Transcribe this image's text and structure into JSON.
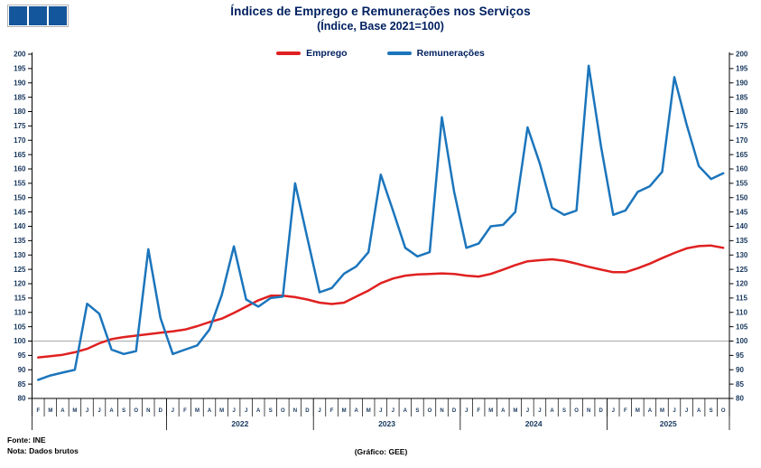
{
  "logo": {
    "description": "three-blue-squares",
    "square_color": "#14569B",
    "square_count": 3
  },
  "footer": {
    "source": "Fonte: INE",
    "note": "Nota: Dados brutos",
    "credit": "(Gráfico: GEE)"
  },
  "chart_data": {
    "type": "line",
    "title": "Índices de Emprego e Remunerações nos Serviços",
    "subtitle": "(Índice, Base 2021=100)",
    "x_start": "2021-02",
    "x_end": "2025-10",
    "month_labels": [
      "F",
      "M",
      "A",
      "M",
      "J",
      "J",
      "A",
      "S",
      "O",
      "N",
      "D",
      "J",
      "F",
      "M",
      "A",
      "M",
      "J",
      "J",
      "A",
      "S",
      "O",
      "N",
      "D",
      "J",
      "F",
      "M",
      "A",
      "M",
      "J",
      "J",
      "A",
      "S",
      "O",
      "N",
      "D",
      "J",
      "F",
      "M",
      "A",
      "M",
      "J",
      "J",
      "A",
      "S",
      "O",
      "N",
      "D",
      "J",
      "F",
      "M",
      "A",
      "M",
      "J",
      "J",
      "A",
      "S",
      "O"
    ],
    "year_groups": [
      {
        "label": "",
        "span": 11
      },
      {
        "label": "2022",
        "span": 12
      },
      {
        "label": "2023",
        "span": 12
      },
      {
        "label": "2024",
        "span": 12
      },
      {
        "label": "2025",
        "span": 10
      }
    ],
    "ylim": [
      80,
      200
    ],
    "ytick_step": 5,
    "reference_line": 100,
    "grid": "single horizontal reference line at 100",
    "legend_position": "top-center",
    "axis_color": "#000000",
    "label_color": "#17375E",
    "series": [
      {
        "name": "Emprego",
        "color": "#E02020",
        "values": [
          94.3,
          94.7,
          95.2,
          96.1,
          97.3,
          99.2,
          100.7,
          101.4,
          101.9,
          102.4,
          102.9,
          103.4,
          104,
          105.2,
          106.6,
          107.8,
          109.8,
          112,
          114.2,
          115.8,
          115.8,
          115.3,
          114.5,
          113.4,
          112.9,
          113.4,
          115.5,
          117.6,
          120.2,
          121.8,
          122.8,
          123.2,
          123.4,
          123.6,
          123.4,
          122.8,
          122.5,
          123.4,
          124.9,
          126.5,
          127.8,
          128.2,
          128.5,
          128,
          127,
          125.9,
          124.9,
          124,
          124,
          125.4,
          127,
          128.9,
          130.7,
          132.3,
          133.1,
          133.3,
          132.5
        ]
      },
      {
        "name": "Remunerações",
        "color": "#1B75BC",
        "values": [
          86.5,
          88,
          89,
          90,
          113,
          109.5,
          97,
          95.5,
          96.5,
          132,
          108,
          95.5,
          97,
          98.5,
          104,
          116,
          133,
          114.5,
          112,
          115,
          115.5,
          155,
          136,
          117,
          118.5,
          123.5,
          126,
          131,
          158,
          145.5,
          132.5,
          129.5,
          131,
          178,
          152,
          132.5,
          134,
          140,
          140.5,
          145,
          174.5,
          162,
          146.5,
          144,
          145.5,
          196,
          168,
          144,
          145.5,
          152,
          154,
          159,
          192,
          175.5,
          161,
          156.5,
          158.5
        ]
      }
    ]
  }
}
